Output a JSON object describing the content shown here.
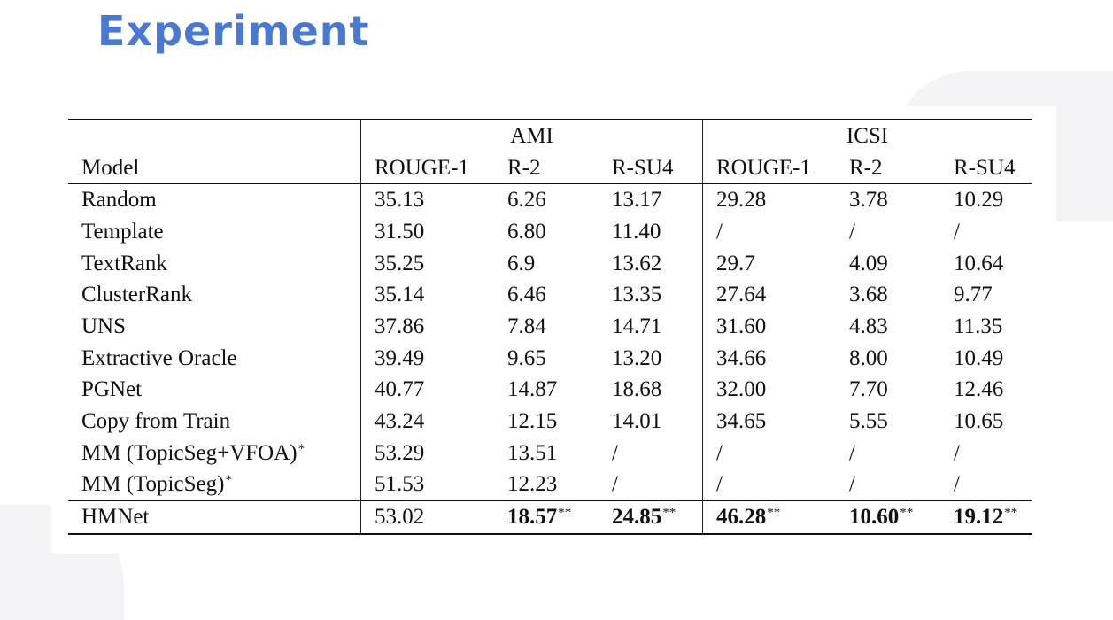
{
  "slide": {
    "title": "Experiment"
  },
  "table": {
    "group_headers": [
      "AMI",
      "ICSI"
    ],
    "columns": [
      "Model",
      "ROUGE-1",
      "R-2",
      "R-SU4",
      "ROUGE-1",
      "R-2",
      "R-SU4"
    ],
    "rows": [
      {
        "model": "Random",
        "cells": [
          "35.13",
          "6.26",
          "13.17",
          "29.28",
          "3.78",
          "10.29"
        ]
      },
      {
        "model": "Template",
        "cells": [
          "31.50",
          "6.80",
          "11.40",
          "/",
          "/",
          "/"
        ]
      },
      {
        "model": "TextRank",
        "cells": [
          "35.25",
          "6.9",
          "13.62",
          "29.7",
          "4.09",
          "10.64"
        ]
      },
      {
        "model": "ClusterRank",
        "cells": [
          "35.14",
          "6.46",
          "13.35",
          "27.64",
          "3.68",
          "9.77"
        ]
      },
      {
        "model": "UNS",
        "cells": [
          "37.86",
          "7.84",
          "14.71",
          "31.60",
          "4.83",
          "11.35"
        ]
      },
      {
        "model": "Extractive Oracle",
        "cells": [
          "39.49",
          "9.65",
          "13.20",
          "34.66",
          "8.00",
          "10.49"
        ]
      },
      {
        "model": "PGNet",
        "cells": [
          "40.77",
          "14.87",
          "18.68",
          "32.00",
          "7.70",
          "12.46"
        ]
      },
      {
        "model": "Copy from Train",
        "cells": [
          "43.24",
          "12.15",
          "14.01",
          "34.65",
          "5.55",
          "10.65"
        ]
      },
      {
        "model": "MM (TopicSeg+VFOA)",
        "model_mark": "*",
        "cells": [
          "53.29",
          "13.51",
          "/",
          "/",
          "/",
          "/"
        ]
      },
      {
        "model": "MM (TopicSeg)",
        "model_mark": "*",
        "cells": [
          "51.53",
          "12.23",
          "/",
          "/",
          "/",
          "/"
        ]
      }
    ],
    "final_row": {
      "model": "HMNet",
      "cells": [
        "53.02",
        "18.57",
        "24.85",
        "46.28",
        "10.60",
        "19.12"
      ],
      "marks": [
        "",
        "**",
        "**",
        "**",
        "**",
        "**"
      ]
    }
  }
}
